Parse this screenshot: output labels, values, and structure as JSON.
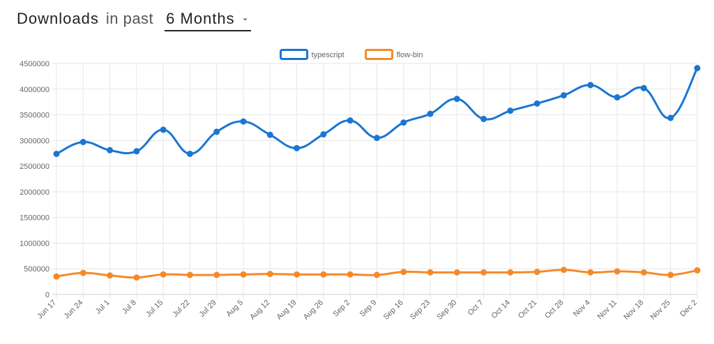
{
  "header": {
    "title": "Downloads",
    "sub": "in past",
    "range_selected": "6 Months",
    "range_chevron": "⌄"
  },
  "chart_data": {
    "type": "line",
    "title": "",
    "xlabel": "",
    "ylabel": "",
    "ylim": [
      0,
      4500000
    ],
    "ytick_labels": [
      "0",
      "500000",
      "1000000",
      "1500000",
      "2000000",
      "2500000",
      "3000000",
      "3500000",
      "4000000",
      "4500000"
    ],
    "grid": true,
    "legend_position": "top-center",
    "categories": [
      "Jun 17",
      "Jun 24",
      "Jul 1",
      "Jul 8",
      "Jul 15",
      "Jul 22",
      "Jul 29",
      "Aug 5",
      "Aug 12",
      "Aug 19",
      "Aug 26",
      "Sep 2",
      "Sep 9",
      "Sep 16",
      "Sep 23",
      "Sep 30",
      "Oct 7",
      "Oct 14",
      "Oct 21",
      "Oct 28",
      "Nov 4",
      "Nov 11",
      "Nov 18",
      "Nov 25",
      "Dec 2"
    ],
    "series": [
      {
        "name": "typescript",
        "color": "#1976d2",
        "values": [
          2740000,
          2970000,
          2810000,
          2790000,
          3210000,
          2740000,
          3170000,
          3370000,
          3110000,
          2850000,
          3120000,
          3390000,
          3050000,
          3350000,
          3520000,
          3810000,
          3420000,
          3580000,
          3720000,
          3880000,
          4080000,
          3840000,
          4020000,
          3440000,
          4410000
        ]
      },
      {
        "name": "flow-bin",
        "color": "#f5892a",
        "values": [
          350000,
          420000,
          370000,
          330000,
          390000,
          380000,
          380000,
          390000,
          400000,
          390000,
          390000,
          390000,
          380000,
          440000,
          430000,
          430000,
          430000,
          430000,
          440000,
          480000,
          430000,
          450000,
          430000,
          380000,
          470000
        ]
      }
    ]
  }
}
